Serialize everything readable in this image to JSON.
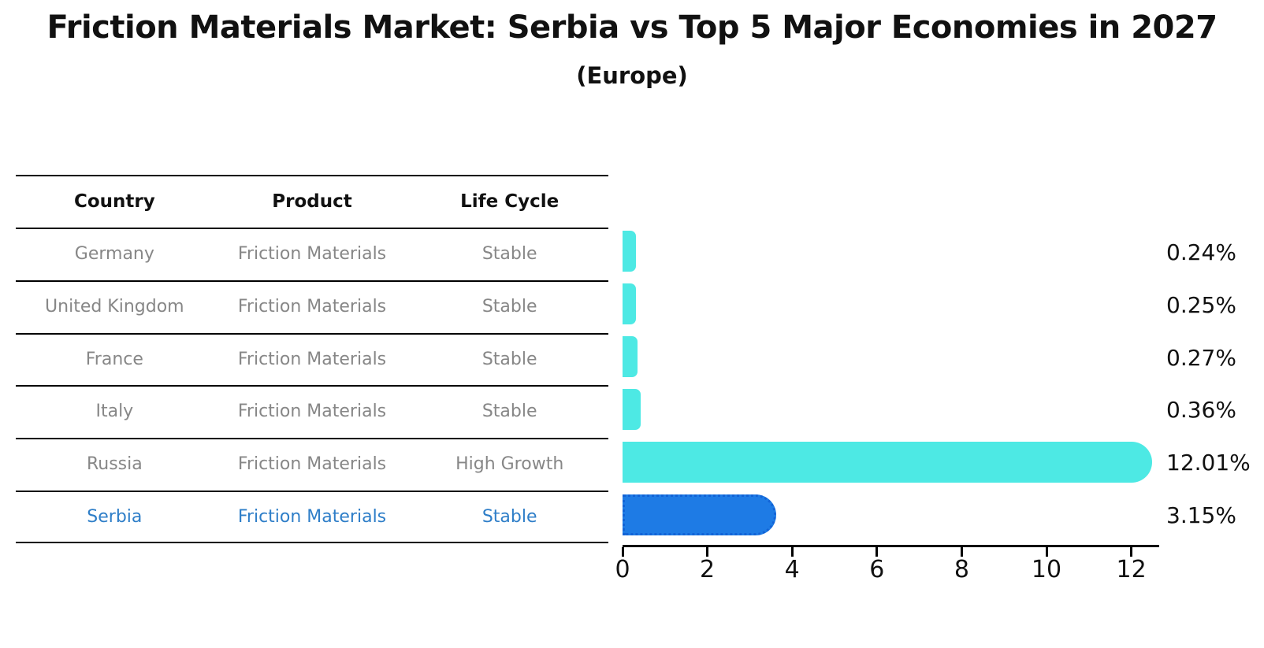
{
  "title": "Friction Materials Market: Serbia vs Top 5 Major Economies in 2027",
  "subtitle": "(Europe)",
  "table": {
    "headers": [
      "Country",
      "Product",
      "Life Cycle"
    ],
    "rows": [
      {
        "country": "Germany",
        "product": "Friction Materials",
        "life_cycle": "Stable"
      },
      {
        "country": "United Kingdom",
        "product": "Friction Materials",
        "life_cycle": "Stable"
      },
      {
        "country": "France",
        "product": "Friction Materials",
        "life_cycle": "Stable"
      },
      {
        "country": "Italy",
        "product": "Friction Materials",
        "life_cycle": "Stable"
      },
      {
        "country": "Russia",
        "product": "Friction Materials",
        "life_cycle": "High Growth"
      },
      {
        "country": "Serbia",
        "product": "Friction Materials",
        "life_cycle": "Stable"
      }
    ]
  },
  "chart_data": {
    "type": "bar",
    "orientation": "horizontal",
    "title": "Friction Materials Market: Serbia vs Top 5 Major Economies in 2027",
    "subtitle": "(Europe)",
    "categories": [
      "Germany",
      "United Kingdom",
      "France",
      "Italy",
      "Russia",
      "Serbia"
    ],
    "values": [
      0.24,
      0.25,
      0.27,
      0.36,
      12.01,
      3.15
    ],
    "value_labels": [
      "0.24%",
      "0.25%",
      "0.27%",
      "0.36%",
      "12.01%",
      "3.15%"
    ],
    "x_ticks": [
      0,
      2,
      4,
      6,
      8,
      10,
      12
    ],
    "xlim": [
      0,
      12.65
    ],
    "grid": false,
    "legend": false,
    "bar_color": "#4DE9E4",
    "highlight": {
      "index": 5,
      "category": "Serbia",
      "bar_color": "#1E7BE5",
      "border_color": "#1263D6",
      "border_style": "dotted",
      "text_color": "#2E7EC8"
    }
  },
  "colors": {
    "background": "#FFFFFF",
    "text": "#111111",
    "table_line": "#000000",
    "table_text": "#878787",
    "bar_cyan": "#4DE9E4",
    "bar_blue": "#1E7BE5",
    "serbia_text": "#2E7EC8"
  }
}
